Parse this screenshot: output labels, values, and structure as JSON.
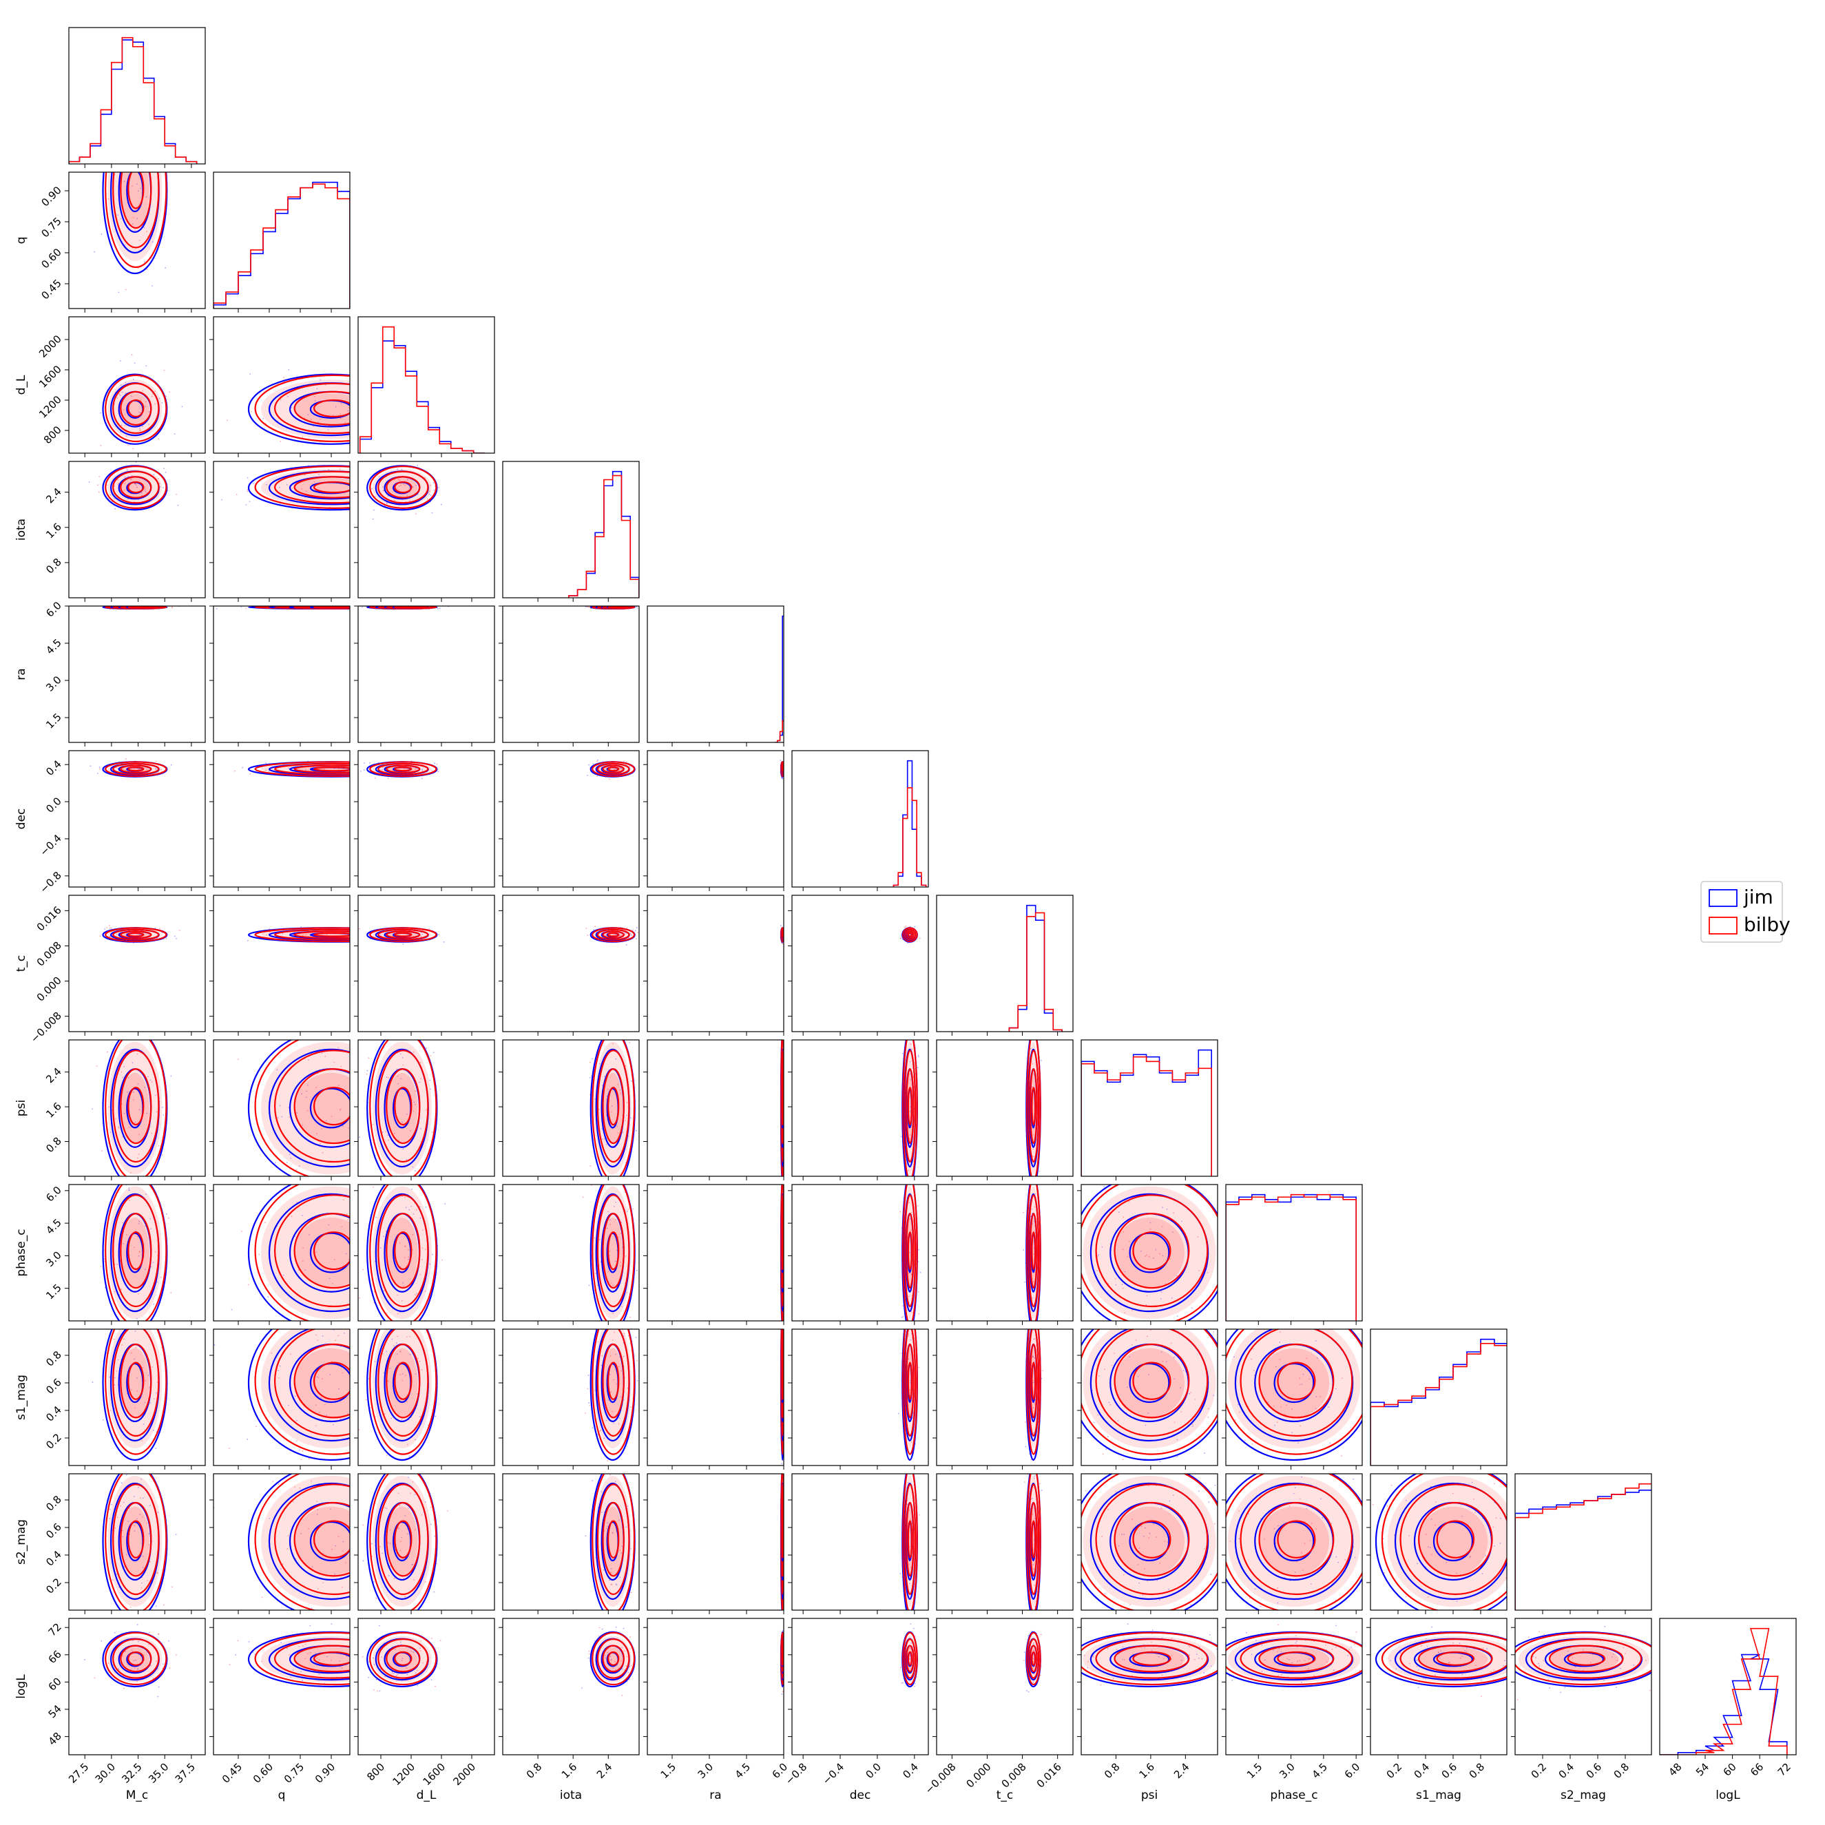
{
  "chart_data": {
    "type": "corner",
    "parameters": [
      {
        "name": "M_c",
        "range": [
          26.0,
          38.8
        ],
        "ticks": [
          27.5,
          30.0,
          32.5,
          35.0,
          37.5
        ],
        "tick_labels": [
          "27.5",
          "30.0",
          "32.5",
          "35.0",
          "37.5"
        ],
        "mean": 32.2,
        "sd": 1.5
      },
      {
        "name": "q",
        "range": [
          0.33,
          0.99
        ],
        "ticks": [
          0.45,
          0.6,
          0.75,
          0.9
        ],
        "tick_labels": [
          "0.45",
          "0.60",
          "0.75",
          "0.90"
        ],
        "mean": 0.9,
        "sd": 0.2
      },
      {
        "name": "d_L",
        "range": [
          500,
          2300
        ],
        "ticks": [
          800,
          1200,
          1600,
          2000
        ],
        "tick_labels": [
          "800",
          "1200",
          "1600",
          "2000"
        ],
        "mean": 1080,
        "sd": 230
      },
      {
        "name": "iota",
        "range": [
          0.0,
          3.1
        ],
        "ticks": [
          0.8,
          1.6,
          2.4
        ],
        "tick_labels": [
          "0.8",
          "1.6",
          "2.4"
        ],
        "mean": 2.5,
        "sd": 0.25
      },
      {
        "name": "ra",
        "range": [
          0.5,
          6.0
        ],
        "ticks": [
          1.5,
          3.0,
          4.5,
          6.0
        ],
        "tick_labels": [
          "1.5",
          "3.0",
          "4.5",
          "6.0"
        ],
        "mean": 5.95,
        "sd": 0.03
      },
      {
        "name": "dec",
        "range": [
          -0.92,
          0.55
        ],
        "ticks": [
          -0.8,
          -0.4,
          0.0,
          0.4
        ],
        "tick_labels": [
          "−0.8",
          "−0.4",
          "0.0",
          "0.4"
        ],
        "mean": 0.35,
        "sd": 0.04
      },
      {
        "name": "t_c",
        "range": [
          -0.0115,
          0.0195
        ],
        "ticks": [
          -0.008,
          0.0,
          0.008,
          0.016
        ],
        "tick_labels": [
          "−0.008",
          "0.000",
          "0.008",
          "0.016"
        ],
        "mean": 0.0105,
        "sd": 0.0008
      },
      {
        "name": "psi",
        "range": [
          0.0,
          3.14
        ],
        "ticks": [
          0.8,
          1.6,
          2.4
        ],
        "tick_labels": [
          "0.8",
          "1.6",
          "2.4"
        ],
        "mean": 1.57,
        "sd": 0.9
      },
      {
        "name": "phase_c",
        "range": [
          0.0,
          6.28
        ],
        "ticks": [
          1.5,
          3.0,
          4.5,
          6.0
        ],
        "tick_labels": [
          "1.5",
          "3.0",
          "4.5",
          "6.0"
        ],
        "mean": 3.14,
        "sd": 1.8
      },
      {
        "name": "s1_mag",
        "range": [
          0.0,
          0.99
        ],
        "ticks": [
          0.2,
          0.4,
          0.6,
          0.8
        ],
        "tick_labels": [
          "0.2",
          "0.4",
          "0.6",
          "0.8"
        ],
        "mean": 0.6,
        "sd": 0.28
      },
      {
        "name": "s2_mag",
        "range": [
          0.0,
          0.99
        ],
        "ticks": [
          0.2,
          0.4,
          0.6,
          0.8
        ],
        "tick_labels": [
          "0.2",
          "0.4",
          "0.6",
          "0.8"
        ],
        "mean": 0.5,
        "sd": 0.28
      },
      {
        "name": "logL",
        "range": [
          44,
          74
        ],
        "ticks": [
          48,
          54,
          60,
          66,
          72
        ],
        "tick_labels": [
          "48",
          "54",
          "60",
          "66",
          "72"
        ],
        "mean": 65,
        "sd": 3.0
      }
    ],
    "row_tick_labels": [
      [],
      [
        "0.45",
        "0.60",
        "0.75",
        "0.90"
      ],
      [
        "800",
        "1200",
        "1600",
        "2000"
      ],
      [
        "0.8",
        "1.6",
        "2.4"
      ],
      [
        "1.5",
        "3.0",
        "4.5",
        "6.0"
      ],
      [
        "−0.8",
        "−0.4",
        "0.0",
        "0.4"
      ],
      [
        "−0.008",
        "0.000",
        "0.008",
        "0.016"
      ],
      [
        "0.8",
        "1.6",
        "2.4"
      ],
      [
        "1.5",
        "3.0",
        "4.5",
        "6.0"
      ],
      [
        "0.2",
        "0.4",
        "0.6",
        "0.8"
      ],
      [
        "0.2",
        "0.4",
        "0.6",
        "0.8"
      ],
      [
        "48",
        "54",
        "60",
        "66",
        "72"
      ]
    ],
    "marginals": {
      "M_c": {
        "x": [
          26.5,
          27.5,
          28.5,
          29.5,
          30.5,
          31.5,
          32.5,
          33.5,
          34.5,
          35.5,
          36.5,
          37.5
        ],
        "jim": [
          1,
          3,
          8,
          22,
          42,
          55,
          54,
          38,
          21,
          9,
          3,
          1
        ],
        "bilby": [
          1,
          3,
          9,
          24,
          45,
          56,
          52,
          36,
          20,
          8,
          3,
          1
        ]
      },
      "q": {
        "x": [
          0.36,
          0.42,
          0.48,
          0.54,
          0.6,
          0.66,
          0.72,
          0.78,
          0.84,
          0.9,
          0.96
        ],
        "jim": [
          2,
          8,
          18,
          30,
          42,
          52,
          60,
          66,
          69,
          69,
          64
        ],
        "bilby": [
          3,
          9,
          20,
          32,
          44,
          54,
          61,
          66,
          68,
          66,
          60
        ]
      },
      "d_L": {
        "x": [
          600,
          750,
          900,
          1050,
          1200,
          1350,
          1500,
          1650,
          1800,
          1950,
          2100
        ],
        "jim": [
          6,
          28,
          48,
          46,
          35,
          22,
          11,
          5,
          2,
          1,
          0
        ],
        "bilby": [
          7,
          30,
          54,
          45,
          33,
          20,
          10,
          4,
          2,
          1,
          0
        ]
      },
      "iota": {
        "x": [
          1.6,
          1.8,
          2.0,
          2.2,
          2.4,
          2.6,
          2.8,
          3.0
        ],
        "jim": [
          1,
          4,
          12,
          32,
          55,
          62,
          40,
          10
        ],
        "bilby": [
          1,
          4,
          13,
          30,
          58,
          60,
          38,
          9
        ]
      },
      "ra": {
        "x": [
          5.7,
          5.8,
          5.9,
          6.0
        ],
        "jim": [
          0,
          1,
          4,
          70
        ],
        "bilby": [
          0,
          1,
          6,
          12
        ]
      },
      "dec": {
        "x": [
          0.2,
          0.25,
          0.3,
          0.35,
          0.4,
          0.45,
          0.5
        ],
        "jim": [
          1,
          6,
          40,
          70,
          32,
          6,
          1
        ],
        "bilby": [
          1,
          8,
          38,
          55,
          48,
          8,
          1
        ]
      },
      "t_c": {
        "x": [
          0.006,
          0.008,
          0.01,
          0.012,
          0.014,
          0.016
        ],
        "jim": [
          2,
          12,
          68,
          60,
          10,
          1
        ],
        "bilby": [
          2,
          14,
          62,
          64,
          12,
          1
        ]
      },
      "psi": {
        "x": [
          0.15,
          0.45,
          0.75,
          1.05,
          1.35,
          1.65,
          1.95,
          2.25,
          2.55,
          2.85
        ],
        "jim": [
          50,
          46,
          41,
          44,
          53,
          52,
          45,
          41,
          44,
          55
        ],
        "bilby": [
          49,
          45,
          42,
          45,
          52,
          50,
          46,
          42,
          45,
          47
        ]
      },
      "phase_c": {
        "x": [
          0.3,
          0.9,
          1.5,
          2.1,
          2.7,
          3.3,
          3.9,
          4.5,
          5.1,
          5.7
        ],
        "jim": [
          48,
          50,
          51,
          49,
          48,
          50,
          51,
          49,
          51,
          50
        ],
        "bilby": [
          47,
          49,
          50,
          48,
          50,
          51,
          50,
          51,
          50,
          49
        ]
      },
      "s1_mag": {
        "x": [
          0.05,
          0.15,
          0.25,
          0.35,
          0.45,
          0.55,
          0.65,
          0.75,
          0.85,
          0.95
        ],
        "jim": [
          30,
          28,
          30,
          32,
          36,
          42,
          48,
          54,
          60,
          58
        ],
        "bilby": [
          28,
          29,
          31,
          33,
          37,
          41,
          47,
          53,
          58,
          57
        ]
      },
      "s2_mag": {
        "x": [
          0.05,
          0.15,
          0.25,
          0.35,
          0.45,
          0.55,
          0.65,
          0.75,
          0.85,
          0.95
        ],
        "jim": [
          46,
          48,
          49,
          50,
          51,
          52,
          54,
          55,
          56,
          57
        ],
        "bilby": [
          44,
          46,
          48,
          49,
          50,
          52,
          53,
          55,
          58,
          60
        ]
      },
      "logL": {
        "x": [
          46,
          50,
          54,
          56,
          58,
          60,
          62,
          64,
          66,
          68,
          70
        ],
        "jim": [
          0,
          1,
          2,
          4,
          8,
          18,
          34,
          46,
          44,
          30,
          6
        ],
        "bilby": [
          0,
          0,
          1,
          2,
          5,
          14,
          30,
          44,
          58,
          36,
          4
        ]
      }
    },
    "series": [
      {
        "name": "jim",
        "color": "#0000ff"
      },
      {
        "name": "bilby",
        "color": "#ff0000"
      }
    ],
    "legend_position": "right",
    "grid": false
  }
}
